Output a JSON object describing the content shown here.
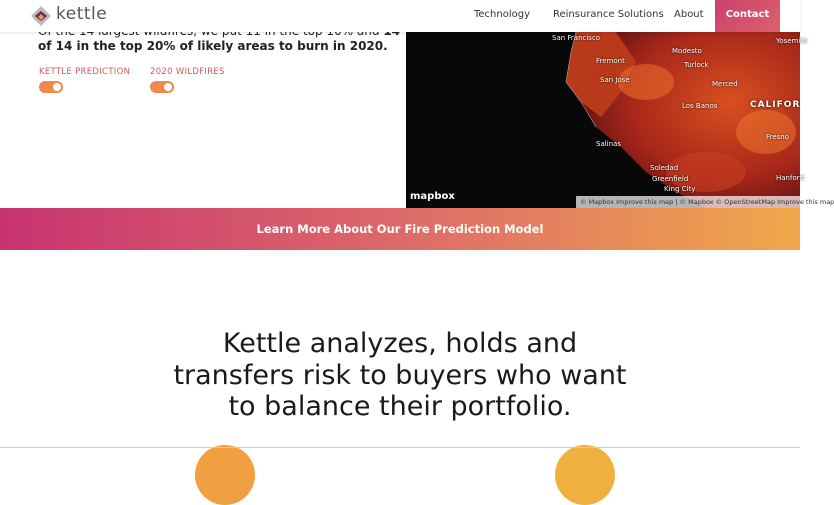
{
  "header": {
    "logo": "kettle",
    "nav": [
      "Technology",
      "Reinsurance Solutions",
      "About"
    ],
    "cta": "Contact"
  },
  "intro": {
    "line1": {
      "text": "Of the 14 largest wildfires, we put 11 in the top 10% and ",
      "bold": "14"
    },
    "line2": "of 14 in the top 20% of likely areas to burn in 2020.",
    "toggles": [
      "KETTLE PREDICTION",
      "2020 WILDFIRES"
    ]
  },
  "map": {
    "labels": [
      "San Francisco",
      "Fremont",
      "San Jose",
      "Modesto",
      "Turlock",
      "Merced",
      "Los Banos",
      "Salinas",
      "Soledad",
      "Greenfield",
      "King City",
      "CALIFOR",
      "Fresno",
      "Hanford",
      "Yosemite"
    ],
    "logo": "mapbox",
    "attribution": "© Mapbox  Improve this map | © Mapbox © OpenStreetMap  Improve this map"
  },
  "banner": "Learn More About Our Fire Prediction Model",
  "headline": [
    "Kettle analyzes, holds and",
    "transfers risk to buyers who want",
    "to balance their portfolio."
  ]
}
